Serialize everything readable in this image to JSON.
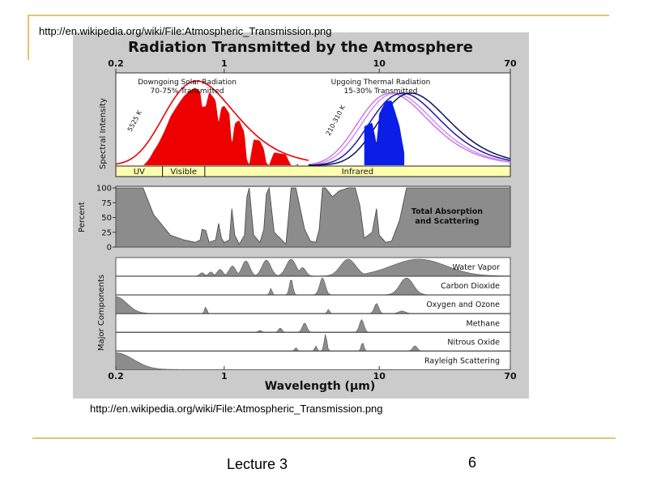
{
  "slide": {
    "top_url": "http://en.wikipedia.org/wiki/File:Atmospheric_Transmission.png",
    "bottom_url": "http://en.wikipedia.org/wiki/File:Atmospheric_Transmission.png",
    "footer_left": "Lecture 3",
    "page_number": "6",
    "accent_color": "#e6c46a"
  },
  "chart_data": {
    "type": "area",
    "title": "Radiation Transmitted by the Atmosphere",
    "xlabel": "Wavelength (μm)",
    "xscale": "log",
    "xlim": [
      0.2,
      70
    ],
    "xticks": [
      "0.2",
      "1",
      "10",
      "70"
    ],
    "colors": {
      "solar": "#ee0000",
      "thermal": "#0a1ee8",
      "fill_gray": "#8c8c8c",
      "band": "#ffffb0"
    },
    "spectral_panel": {
      "ylabel": "Spectral Intensity",
      "solar_label": [
        "Downgoing Solar Radiation",
        "70-75% Transmitted"
      ],
      "thermal_label": [
        "Upgoing Thermal Radiation",
        "15-30% Transmitted"
      ],
      "solar_temp": "5525 K",
      "thermal_temp": "210-310 K",
      "solar_peak_um": 0.5,
      "thermal_peaks_um": [
        9.3,
        10.5,
        11.8,
        13.5
      ],
      "bands": [
        {
          "name": "UV",
          "from": 0.2,
          "to": 0.4
        },
        {
          "name": "Visible",
          "from": 0.4,
          "to": 0.75
        },
        {
          "name": "Infrared",
          "from": 0.75,
          "to": 70
        }
      ]
    },
    "absorption_panel": {
      "ylabel": "Percent",
      "label": [
        "Total Absorption",
        "and Scattering"
      ],
      "ylim": [
        0,
        100
      ],
      "yticks": [
        "100",
        "75",
        "50",
        "25",
        "0"
      ],
      "x": [
        0.2,
        0.3,
        0.35,
        0.45,
        0.55,
        0.65,
        0.7,
        0.72,
        0.76,
        0.8,
        0.88,
        0.92,
        0.96,
        1.0,
        1.08,
        1.12,
        1.17,
        1.25,
        1.35,
        1.4,
        1.45,
        1.55,
        1.7,
        1.8,
        1.87,
        1.95,
        2.1,
        2.5,
        2.7,
        2.9,
        3.3,
        3.6,
        3.9,
        4.1,
        4.3,
        4.5,
        5.0,
        5.5,
        6.3,
        7.0,
        7.5,
        8.0,
        9.0,
        9.6,
        10.0,
        11.0,
        12.0,
        13.5,
        15.0,
        17.0,
        20.0,
        25.0,
        70.0
      ],
      "y": [
        100,
        100,
        55,
        20,
        12,
        8,
        12,
        30,
        28,
        8,
        12,
        40,
        15,
        8,
        12,
        65,
        20,
        5,
        20,
        85,
        100,
        20,
        8,
        30,
        90,
        100,
        25,
        5,
        100,
        100,
        30,
        10,
        8,
        30,
        100,
        100,
        85,
        95,
        100,
        100,
        70,
        15,
        25,
        65,
        20,
        8,
        10,
        45,
        100,
        100,
        100,
        100,
        100
      ]
    },
    "components": {
      "ylabel": "Major Components",
      "rows": [
        {
          "name": "Water Vapor",
          "peaks": [
            {
              "x": 0.72,
              "h": 0.2,
              "w": 0.02
            },
            {
              "x": 0.82,
              "h": 0.25,
              "w": 0.02
            },
            {
              "x": 0.94,
              "h": 0.4,
              "w": 0.025
            },
            {
              "x": 1.13,
              "h": 0.6,
              "w": 0.03
            },
            {
              "x": 1.38,
              "h": 0.9,
              "w": 0.035
            },
            {
              "x": 1.87,
              "h": 0.95,
              "w": 0.04
            },
            {
              "x": 2.7,
              "h": 1.0,
              "w": 0.045
            },
            {
              "x": 3.2,
              "h": 0.5,
              "w": 0.03
            },
            {
              "x": 6.3,
              "h": 1.0,
              "w": 0.07
            },
            {
              "x": 18.0,
              "h": 1.0,
              "w": 0.25
            }
          ]
        },
        {
          "name": "Carbon Dioxide",
          "peaks": [
            {
              "x": 2.0,
              "h": 0.4,
              "w": 0.01
            },
            {
              "x": 2.7,
              "h": 0.95,
              "w": 0.015
            },
            {
              "x": 4.3,
              "h": 1.0,
              "w": 0.025
            },
            {
              "x": 15.0,
              "h": 1.0,
              "w": 0.06
            }
          ]
        },
        {
          "name": "Oxygen and Ozone",
          "peaks": [
            {
              "x": 0.2,
              "h": 1.0,
              "w": 0.1
            },
            {
              "x": 0.76,
              "h": 0.4,
              "w": 0.01
            },
            {
              "x": 4.7,
              "h": 0.25,
              "w": 0.01
            },
            {
              "x": 9.6,
              "h": 0.6,
              "w": 0.02
            },
            {
              "x": 14.0,
              "h": 0.15,
              "w": 0.03
            }
          ]
        },
        {
          "name": "Methane",
          "peaks": [
            {
              "x": 1.7,
              "h": 0.1,
              "w": 0.015
            },
            {
              "x": 2.3,
              "h": 0.25,
              "w": 0.015
            },
            {
              "x": 3.3,
              "h": 0.55,
              "w": 0.02
            },
            {
              "x": 7.7,
              "h": 0.75,
              "w": 0.02
            }
          ]
        },
        {
          "name": "Nitrous Oxide",
          "peaks": [
            {
              "x": 2.9,
              "h": 0.2,
              "w": 0.01
            },
            {
              "x": 3.9,
              "h": 0.3,
              "w": 0.01
            },
            {
              "x": 4.5,
              "h": 1.0,
              "w": 0.012
            },
            {
              "x": 7.8,
              "h": 0.5,
              "w": 0.012
            },
            {
              "x": 17.0,
              "h": 0.3,
              "w": 0.02
            }
          ]
        },
        {
          "name": "Rayleigh Scattering",
          "peaks": [
            {
              "x": 0.2,
              "h": 1.0,
              "w": 0.16
            }
          ]
        }
      ]
    }
  }
}
